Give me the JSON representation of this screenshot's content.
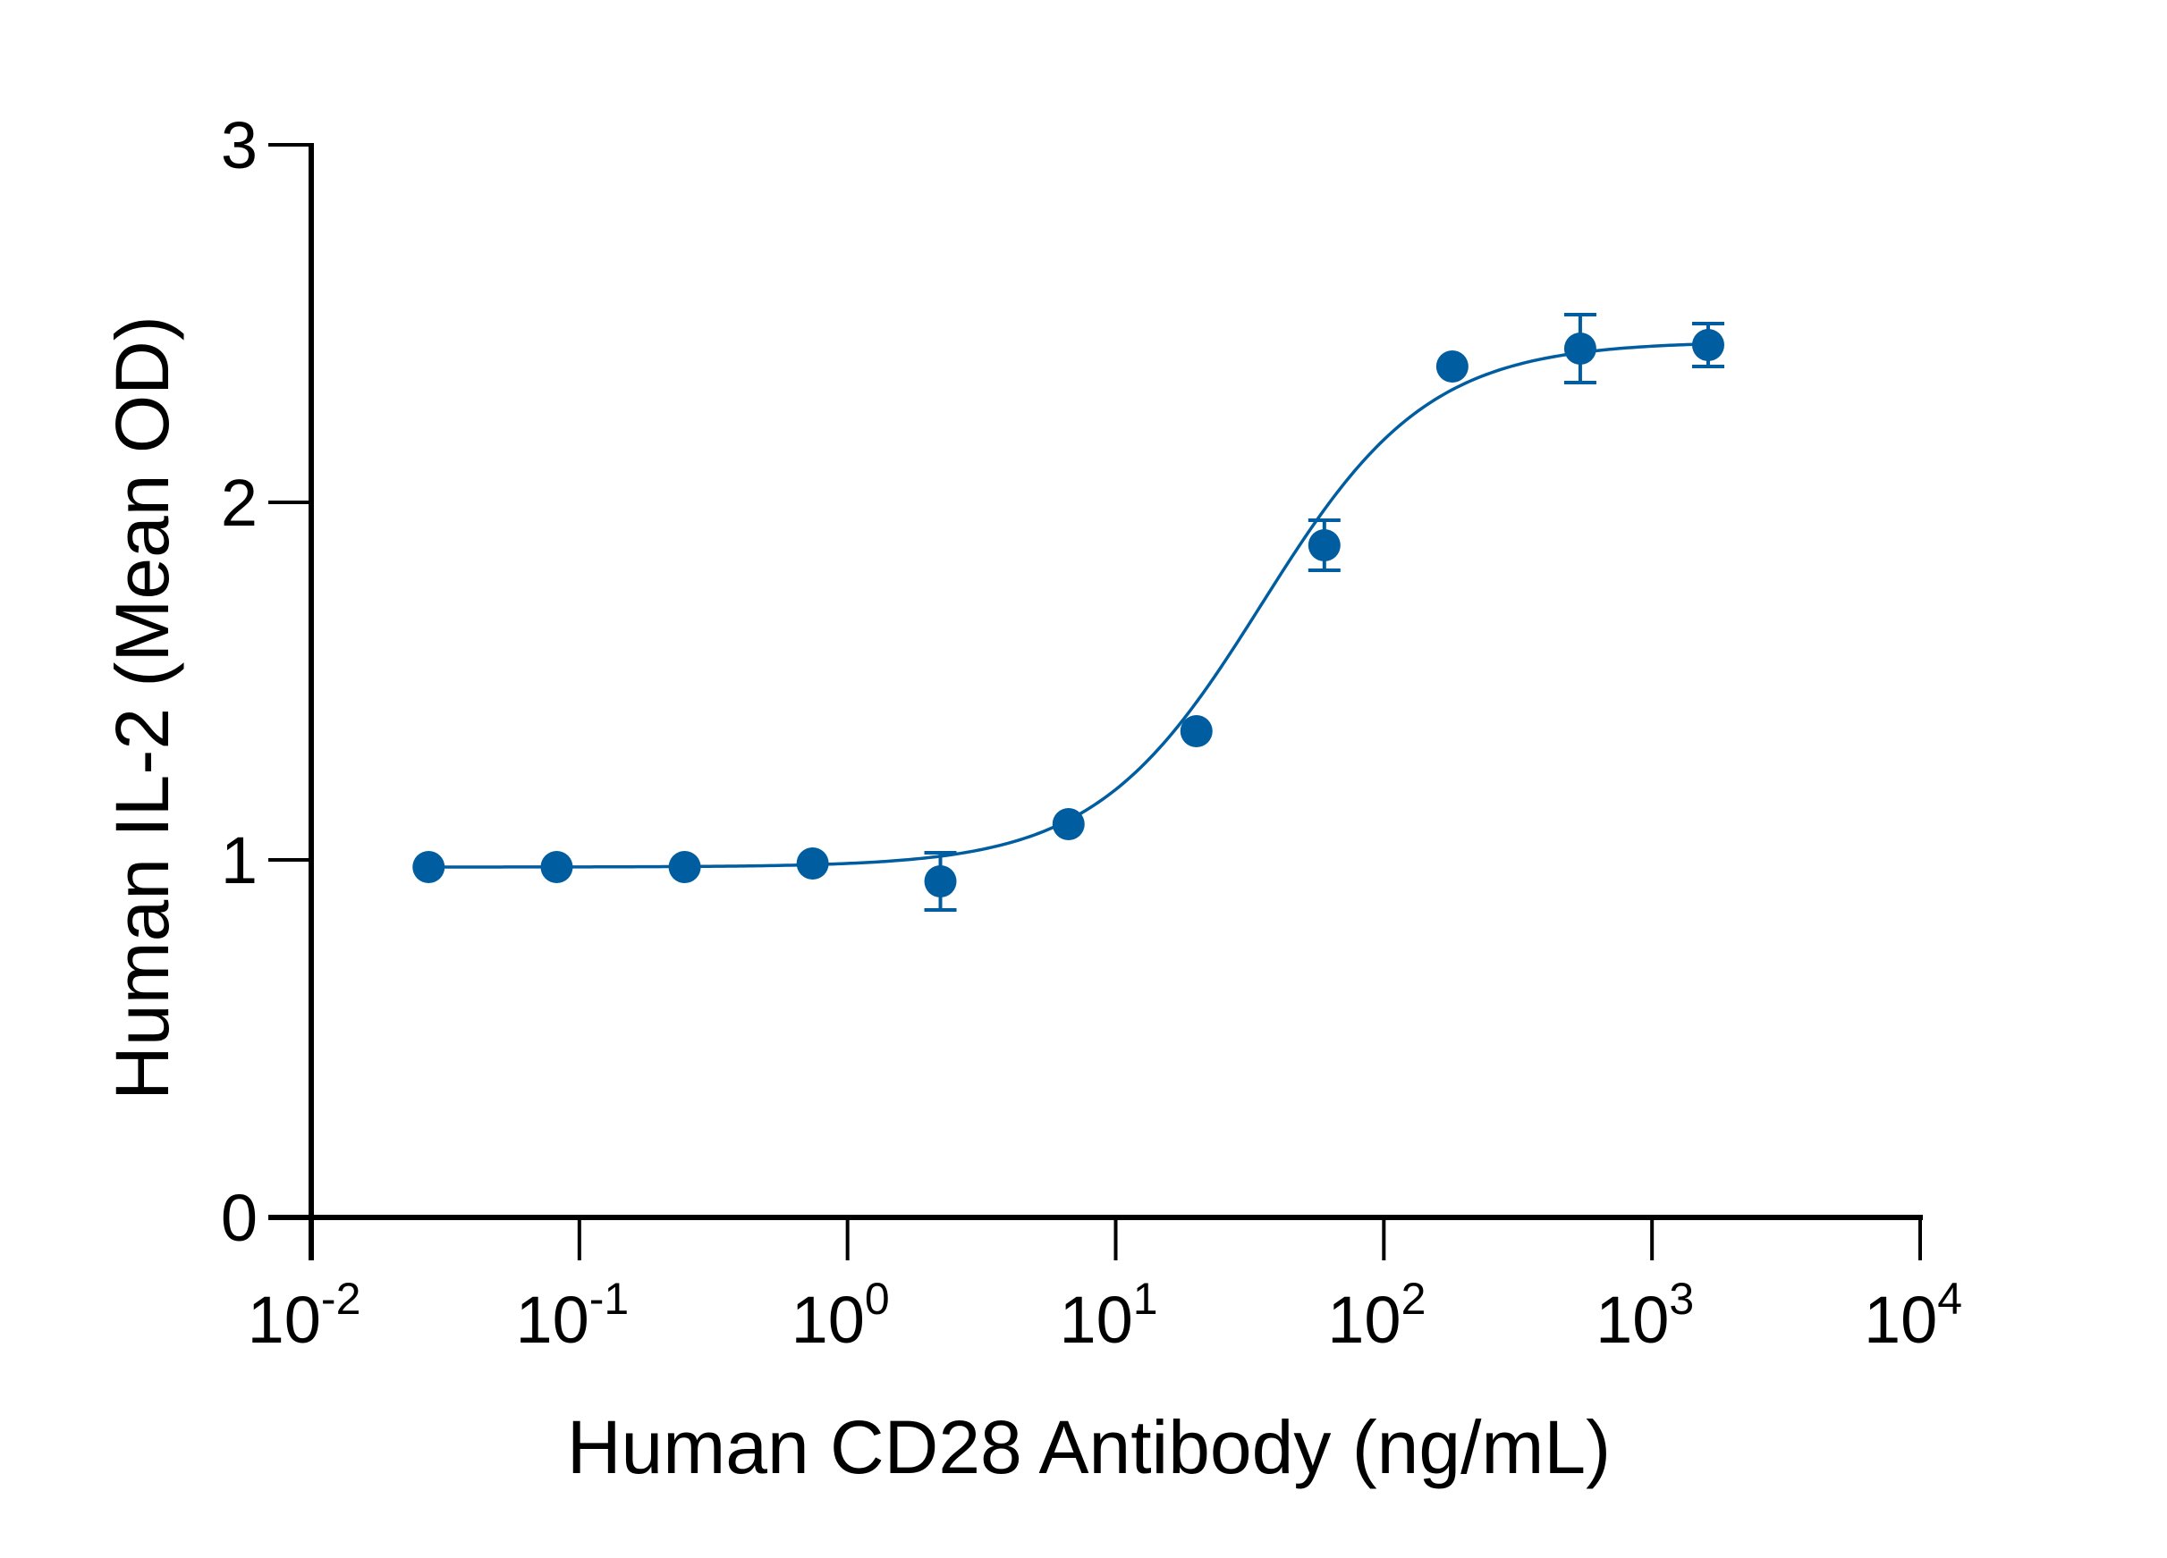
{
  "chart_data": {
    "type": "scatter",
    "title": "",
    "xlabel": "Human CD28 Antibody (ng/mL)",
    "ylabel": "Human IL-2 (Mean  OD)",
    "xscale": "log",
    "xlim": [
      0.01,
      10000
    ],
    "ylim": [
      0,
      3
    ],
    "grid": false,
    "legend": "none",
    "x_ticks": [
      {
        "value": 0.01,
        "base": "10",
        "exp": "-2"
      },
      {
        "value": 0.1,
        "base": "10",
        "exp": "-1"
      },
      {
        "value": 1,
        "base": "10",
        "exp": "0"
      },
      {
        "value": 10,
        "base": "10",
        "exp": "1"
      },
      {
        "value": 100,
        "base": "10",
        "exp": "2"
      },
      {
        "value": 1000,
        "base": "10",
        "exp": "3"
      },
      {
        "value": 10000,
        "base": "10",
        "exp": "4"
      }
    ],
    "y_ticks": [
      {
        "value": 0,
        "label": "0"
      },
      {
        "value": 1,
        "label": "1"
      },
      {
        "value": 2,
        "label": "2"
      },
      {
        "value": 3,
        "label": "3"
      }
    ],
    "series": [
      {
        "name": "Human CD28 Antibody",
        "color": "#005DA0",
        "x": [
          0.0274,
          0.0823,
          0.247,
          0.741,
          2.22,
          6.67,
          20,
          60,
          180,
          540,
          1620
        ],
        "y": [
          0.98,
          0.98,
          0.98,
          0.99,
          0.94,
          1.1,
          1.36,
          1.88,
          2.38,
          2.43,
          2.44
        ],
        "error": [
          0,
          0,
          0,
          0,
          0.08,
          0,
          0,
          0.07,
          0,
          0.095,
          0.06
        ]
      }
    ],
    "fit": {
      "model": "4PL",
      "bottom": 0.98,
      "top": 2.45,
      "ec50": 35,
      "hill": 1.4,
      "x_range": [
        0.0274,
        1620
      ]
    }
  }
}
